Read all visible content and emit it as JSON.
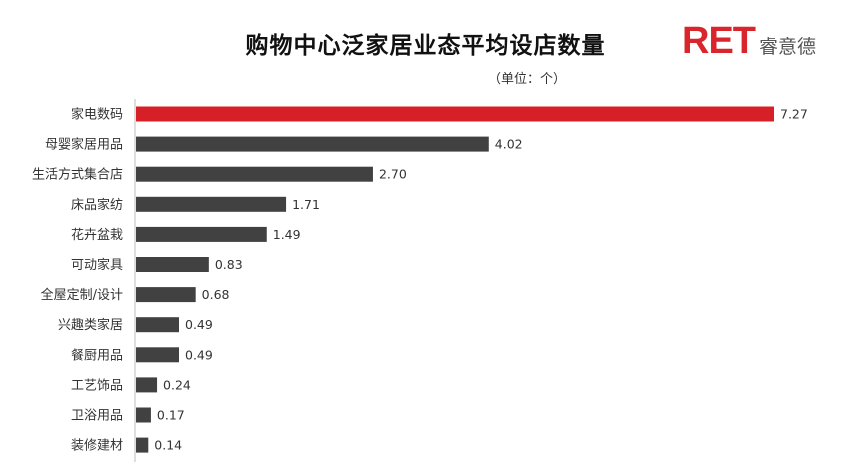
{
  "title": "购物中心泛家居业态平均设店数量",
  "unit": "（单位：个）",
  "brand": {
    "logo_mark": "RET",
    "logo_text": "睿意德"
  },
  "colors": {
    "highlight": "#d61f26",
    "bar": "#414141",
    "axis": "#bdbdbd",
    "brand": "#d8262c"
  },
  "chart_data": {
    "type": "bar",
    "orientation": "horizontal",
    "title": "购物中心泛家居业态平均设店数量",
    "unit": "（单位：个）",
    "categories": [
      "家电数码",
      "母婴家居用品",
      "生活方式集合店",
      "床品家纺",
      "花卉盆栽",
      "可动家具",
      "全屋定制/设计",
      "兴趣类家居",
      "餐厨用品",
      "工艺饰品",
      "卫浴用品",
      "装修建材"
    ],
    "values": [
      7.27,
      4.02,
      2.7,
      1.71,
      1.49,
      0.83,
      0.68,
      0.49,
      0.49,
      0.24,
      0.17,
      0.14
    ],
    "value_labels": [
      "7.27",
      "4.02",
      "2.70",
      "1.71",
      "1.49",
      "0.83",
      "0.68",
      "0.49",
      "0.49",
      "0.24",
      "0.17",
      "0.14"
    ],
    "highlight_index": 0,
    "xlim": [
      0,
      7.27
    ],
    "grid": false
  }
}
